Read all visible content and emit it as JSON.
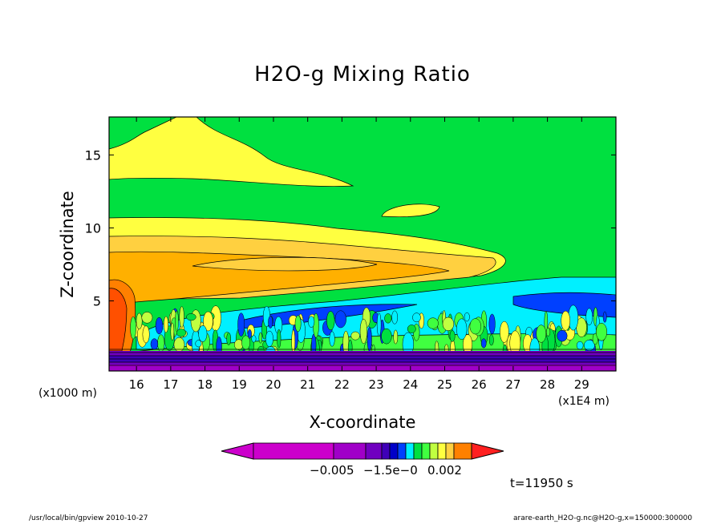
{
  "chart_data": {
    "type": "contour",
    "title": "H2O-g Mixing Ratio",
    "xlabel": "X-coordinate",
    "ylabel": "Z-coordinate",
    "x_unit_left": "(x1000 m)",
    "x_unit_right": "(x1E4 m)",
    "xlim": [
      15.2,
      30.0
    ],
    "ylim": [
      0.2,
      17.6
    ],
    "x_ticks": [
      16,
      17,
      18,
      19,
      20,
      21,
      22,
      23,
      24,
      25,
      26,
      27,
      28,
      29
    ],
    "y_ticks": [
      5,
      10,
      15
    ],
    "colorbar_labels": [
      "−0.005",
      "−1.5e−0",
      "0.002"
    ],
    "time_label": "t=11950 s",
    "grid": false,
    "legend": "colorbar-bottom",
    "colors": {
      "magenta": "#cc00cc",
      "violet": "#a000c8",
      "purple": "#7000c0",
      "indigo": "#3f00b8",
      "blue_dark": "#0000c8",
      "blue": "#0040ff",
      "cyan": "#00f0ff",
      "green": "#00e040",
      "green_light": "#40ff40",
      "yellow_green": "#c0ff40",
      "yellow": "#ffff40",
      "yellow_orange": "#ffd040",
      "orange_light": "#ffb000",
      "orange": "#ff8000",
      "orange_red": "#ff5000",
      "red": "#ff2020"
    }
  },
  "footer": {
    "left": "/usr/local/bin/gpview   2010-10-27",
    "right": "arare-earth_H2O-g.nc@H2O-g,x=150000:300000"
  }
}
